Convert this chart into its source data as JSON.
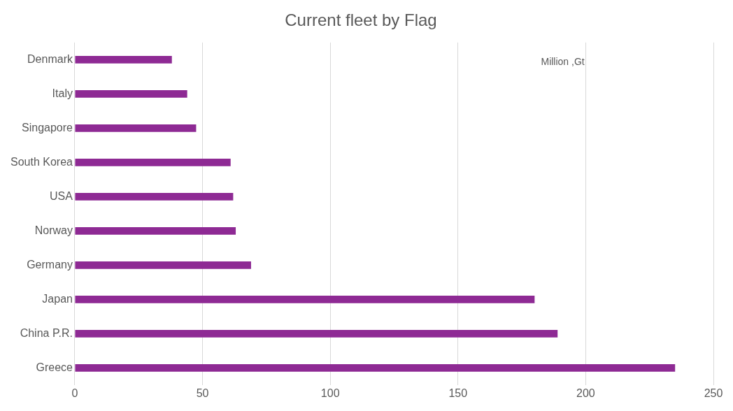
{
  "chart_data": {
    "type": "bar",
    "orientation": "horizontal",
    "title": "Current fleet by Flag",
    "categories": [
      "Denmark",
      "Italy",
      "Singapore",
      "South Korea",
      "USA",
      "Norway",
      "Germany",
      "Japan",
      "China P.R.",
      "Greece"
    ],
    "values": [
      38,
      44,
      47.5,
      61,
      62,
      63,
      69,
      180,
      189,
      235
    ],
    "color": "#8e2a94",
    "xlim": [
      0,
      250
    ],
    "xticks": [
      0,
      50,
      100,
      150,
      200,
      250
    ],
    "grid": "x",
    "legend": false,
    "annotations": [
      "Million ,Gt"
    ]
  }
}
